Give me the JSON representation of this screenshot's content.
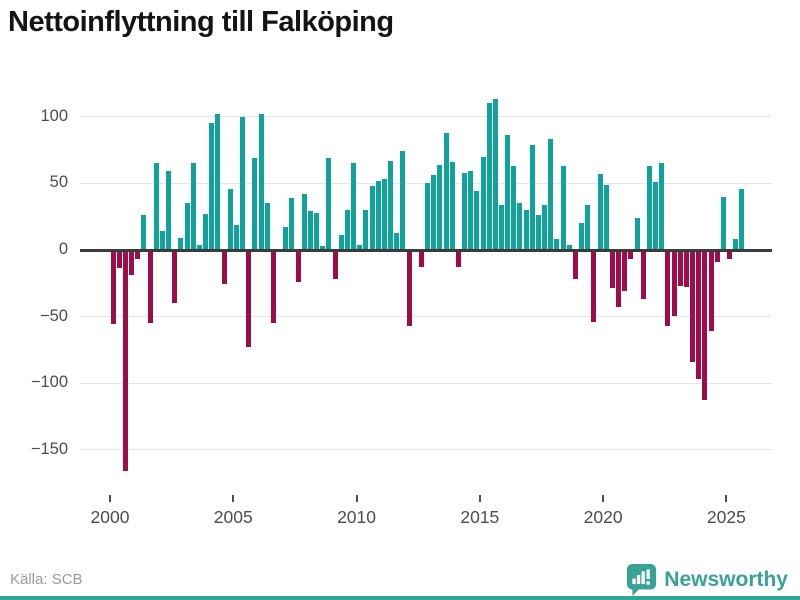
{
  "title": "Nettoinflyttning till Falköping",
  "source_label": "Källa: SCB",
  "brand": {
    "name": "Newsworthy",
    "color": "#38a295",
    "logo_icon": "barchart-pin-icon"
  },
  "colors": {
    "positive_bar": "#10a39b",
    "negative_bar": "#9e0d49",
    "grid": "#e6e6e6",
    "zero_axis": "#3b3b3b",
    "axis_text": "#4d4d4d",
    "title_text": "#141414",
    "source_text": "#9b9b9b",
    "bottom_strip": "#2fa79b"
  },
  "chart_data": {
    "type": "bar",
    "title": "Nettoinflyttning till Falköping",
    "xlabel": "",
    "ylabel": "",
    "legend": false,
    "grid": true,
    "start_year": 2000,
    "start_quarter": 1,
    "frequency": "quarterly",
    "values": [
      -55,
      -13,
      -165,
      -18,
      -6,
      26,
      -54,
      65,
      14,
      59,
      -39,
      9,
      35,
      65,
      4,
      27,
      95,
      102,
      -25,
      46,
      19,
      100,
      -72,
      69,
      102,
      35,
      -54,
      0,
      17,
      39,
      -23,
      42,
      29,
      28,
      3,
      69,
      -21,
      11,
      30,
      65,
      4,
      30,
      48,
      52,
      53,
      67,
      13,
      74,
      -56,
      0,
      -12,
      50,
      56,
      64,
      88,
      66,
      -12,
      58,
      59,
      44,
      70,
      110,
      113,
      34,
      86,
      63,
      35,
      30,
      79,
      26,
      34,
      83,
      8,
      63,
      4,
      -21,
      20,
      34,
      -53,
      57,
      49,
      -28,
      -42,
      -30,
      -6,
      24,
      -36,
      63,
      51,
      65,
      -56,
      -49,
      -26,
      -27,
      -83,
      -96,
      -112,
      -60,
      -8,
      40,
      -6,
      8,
      46
    ],
    "yticks": [
      {
        "v": 100,
        "label": "100"
      },
      {
        "v": 50,
        "label": "50"
      },
      {
        "v": 0,
        "label": "0"
      },
      {
        "v": -50,
        "label": "−50"
      },
      {
        "v": -100,
        "label": "−100"
      },
      {
        "v": -150,
        "label": "−150"
      }
    ],
    "xticks": [
      {
        "year": "2000"
      },
      {
        "year": "2005"
      },
      {
        "year": "2010"
      },
      {
        "year": "2015"
      },
      {
        "year": "2020"
      },
      {
        "year": "2025"
      }
    ],
    "ylim": [
      -175,
      130
    ]
  }
}
